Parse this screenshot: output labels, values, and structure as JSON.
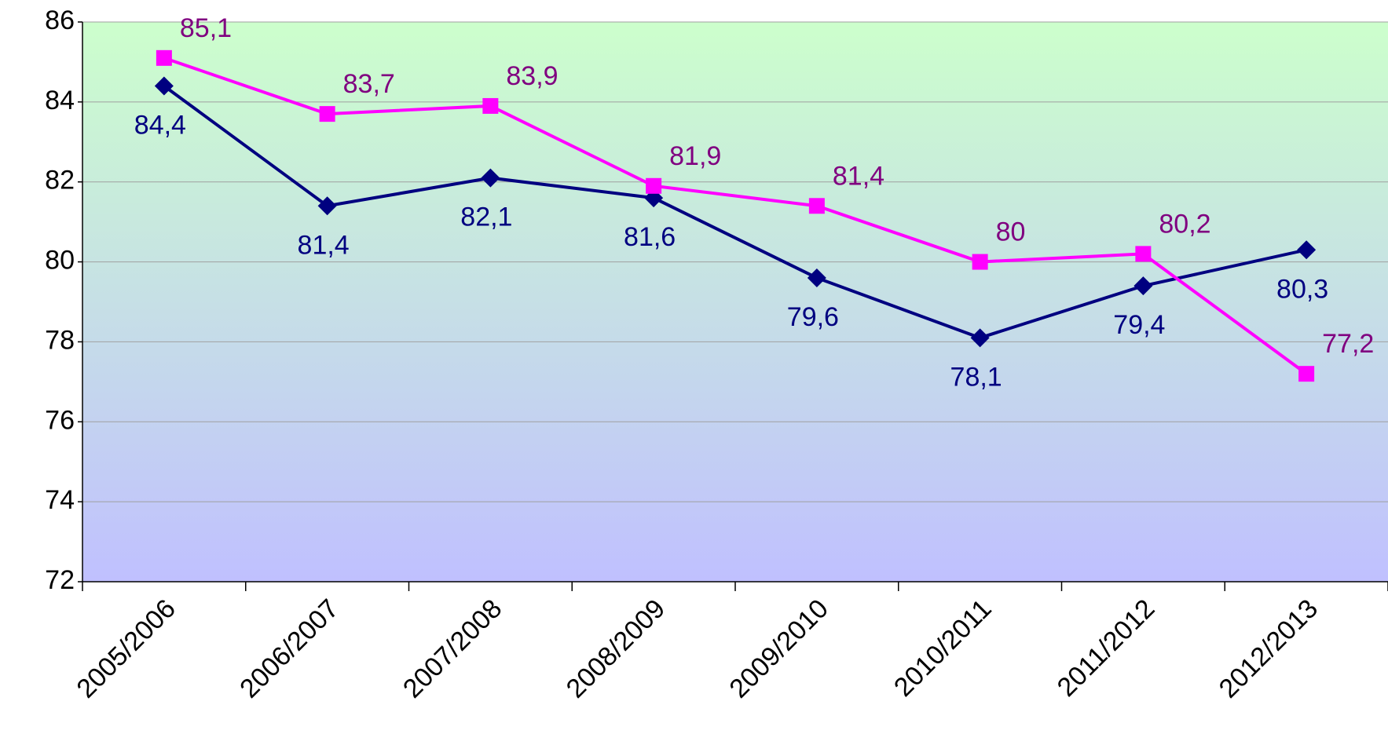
{
  "chart_data": {
    "type": "line",
    "categories": [
      "2005/2006",
      "2006/2007",
      "2007/2008",
      "2008/2009",
      "2009/2010",
      "2010/2011",
      "2011/2012",
      "2012/2013"
    ],
    "series": [
      {
        "color": "#000080",
        "marker": "diamond",
        "label_color": "#000080",
        "values": [
          84.4,
          81.4,
          82.1,
          81.6,
          79.6,
          78.1,
          79.4,
          80.3
        ],
        "value_labels": [
          "84,4",
          "81,4",
          "82,1",
          "81,6",
          "79,6",
          "78,1",
          "79,4",
          "80,3"
        ]
      },
      {
        "color": "#ff00ff",
        "marker": "square",
        "label_color": "#800080",
        "values": [
          85.1,
          83.7,
          83.9,
          81.9,
          81.4,
          80,
          80.2,
          77.2
        ],
        "value_labels": [
          "85,1",
          "83,7",
          "83,9",
          "81,9",
          "81,4",
          "80",
          "80,2",
          "77,2"
        ]
      }
    ],
    "ylim": [
      72,
      86
    ],
    "yticks": [
      72,
      74,
      76,
      78,
      80,
      82,
      84,
      86
    ],
    "grid": true
  }
}
